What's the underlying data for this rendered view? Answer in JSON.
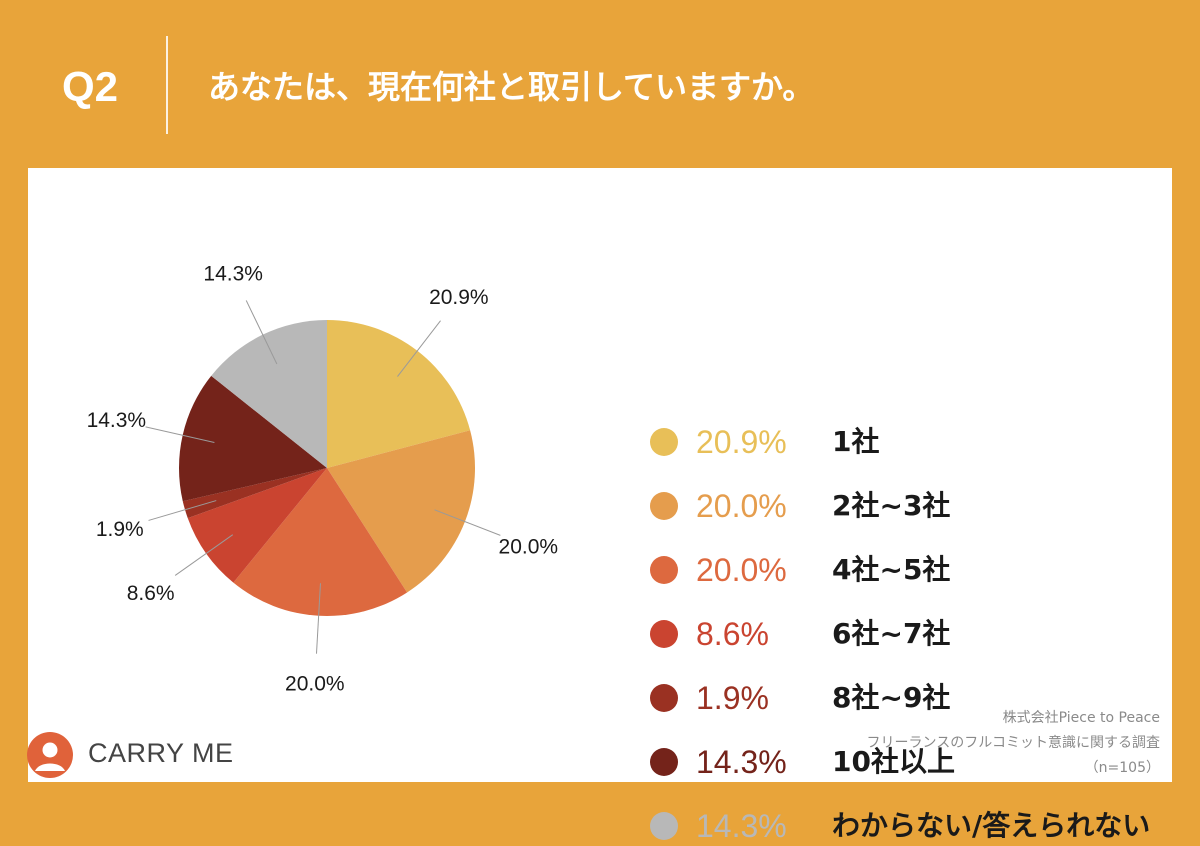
{
  "header": {
    "question_label": "Q2",
    "question_text": "あなたは、現在何社と取引していますか。"
  },
  "colors": {
    "background": "#E8A43A",
    "panel": "#FFFFFF"
  },
  "chart_data": {
    "type": "pie",
    "title": "",
    "categories": [
      "1社",
      "2社~3社",
      "4社~5社",
      "6社~7社",
      "8社~9社",
      "10社以上",
      "わからない/答えられない"
    ],
    "values": [
      20.9,
      20.0,
      20.0,
      8.6,
      1.9,
      14.3,
      14.3
    ],
    "labels": [
      "20.9%",
      "20.0%",
      "20.0%",
      "8.6%",
      "1.9%",
      "14.3%",
      "14.3%"
    ],
    "colors": [
      "#E8BF58",
      "#E59D4D",
      "#DD693F",
      "#CA4430",
      "#9A3122",
      "#74231A",
      "#B8B8B8"
    ],
    "start": "top, clockwise",
    "legend": "right"
  },
  "source": {
    "line1": "株式会社Piece to Peace",
    "line2": "フリーランスのフルコミット意識に関する調査",
    "line3": "（n=105）"
  },
  "logo": {
    "text": "CARRY ME",
    "icon": "carry-me-logo-icon"
  }
}
